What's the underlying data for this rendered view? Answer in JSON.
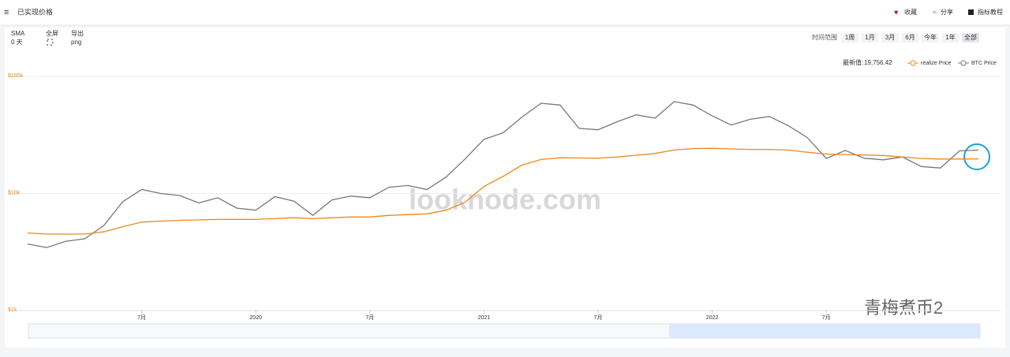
{
  "header": {
    "title": "已实现价格",
    "actions": [
      "收藏",
      "分享",
      "指标教程"
    ]
  },
  "controls": {
    "sma_label": "SMA",
    "sma_value": "0 天",
    "fullscreen": "全屏",
    "export_label": "导出",
    "export_value": "png",
    "range_label": "时间范围",
    "ranges": [
      "1周",
      "1月",
      "3月",
      "6月",
      "今年",
      "1年",
      "全部"
    ]
  },
  "latest": {
    "label": "最新值:",
    "value": "19,756.42"
  },
  "watermarks": [
    "looknode.com",
    "青梅煮币2"
  ],
  "chart_data": {
    "type": "line",
    "log_scale": true,
    "x": [
      "2019-01",
      "2019-02",
      "2019-03",
      "2019-04",
      "2019-05",
      "2019-06",
      "2019-07",
      "2019-08",
      "2019-09",
      "2019-10",
      "2019-11",
      "2019-12",
      "2020-01",
      "2020-02",
      "2020-03",
      "2020-04",
      "2020-05",
      "2020-06",
      "2020-07",
      "2020-08",
      "2020-09",
      "2020-10",
      "2020-11",
      "2020-12",
      "2021-01",
      "2021-02",
      "2021-03",
      "2021-04",
      "2021-05",
      "2021-06",
      "2021-07",
      "2021-08",
      "2021-09",
      "2021-10",
      "2021-11",
      "2021-12",
      "2022-01",
      "2022-02",
      "2022-03",
      "2022-04",
      "2022-05",
      "2022-06",
      "2022-07",
      "2022-08",
      "2022-09",
      "2022-10",
      "2022-11",
      "2022-12",
      "2023-01",
      "2023-02",
      "2023-03"
    ],
    "series": [
      {
        "name": "realize Price",
        "color": "#f0861c",
        "values": [
          4600,
          4500,
          4500,
          4500,
          4700,
          5200,
          5700,
          5800,
          5900,
          5950,
          6000,
          6000,
          6000,
          6100,
          6200,
          6100,
          6200,
          6300,
          6300,
          6500,
          6600,
          6700,
          7200,
          8400,
          11500,
          14000,
          17500,
          19500,
          20200,
          20100,
          20000,
          20500,
          21200,
          22000,
          23500,
          24200,
          24300,
          24000,
          23800,
          23800,
          23500,
          22500,
          21700,
          21500,
          21300,
          21100,
          20500,
          19900,
          19700,
          19700,
          19756
        ]
      },
      {
        "name": "BTC Price",
        "color": "#777777",
        "values": [
          3700,
          3450,
          3900,
          4100,
          5300,
          8500,
          10800,
          10000,
          9600,
          8300,
          9200,
          7500,
          7200,
          9400,
          8600,
          6500,
          8800,
          9500,
          9200,
          11300,
          11700,
          10800,
          13800,
          19700,
          29000,
          33000,
          45000,
          59000,
          57000,
          36000,
          35000,
          41000,
          47000,
          44000,
          61000,
          57000,
          46000,
          38500,
          43000,
          45500,
          38000,
          30000,
          19900,
          23300,
          20000,
          19400,
          20500,
          17000,
          16500,
          23100,
          23500
        ]
      }
    ],
    "xlim": [
      "2019-01",
      "2023-03"
    ],
    "xticks": [
      {
        "value": "2019-07",
        "label": "7月"
      },
      {
        "value": "2020-01",
        "label": "2020"
      },
      {
        "value": "2020-07",
        "label": "7月"
      },
      {
        "value": "2021-01",
        "label": "2021"
      },
      {
        "value": "2021-07",
        "label": "7月"
      },
      {
        "value": "2022-01",
        "label": "2022"
      },
      {
        "value": "2022-07",
        "label": "7月"
      }
    ],
    "ylim": [
      1000,
      100000
    ],
    "yticks": [
      {
        "value": 100000,
        "label": "$100k"
      },
      {
        "value": 10000,
        "label": "$10k"
      },
      {
        "value": 1000,
        "label": "$1k"
      }
    ],
    "grid": true,
    "legend": "top-right"
  }
}
